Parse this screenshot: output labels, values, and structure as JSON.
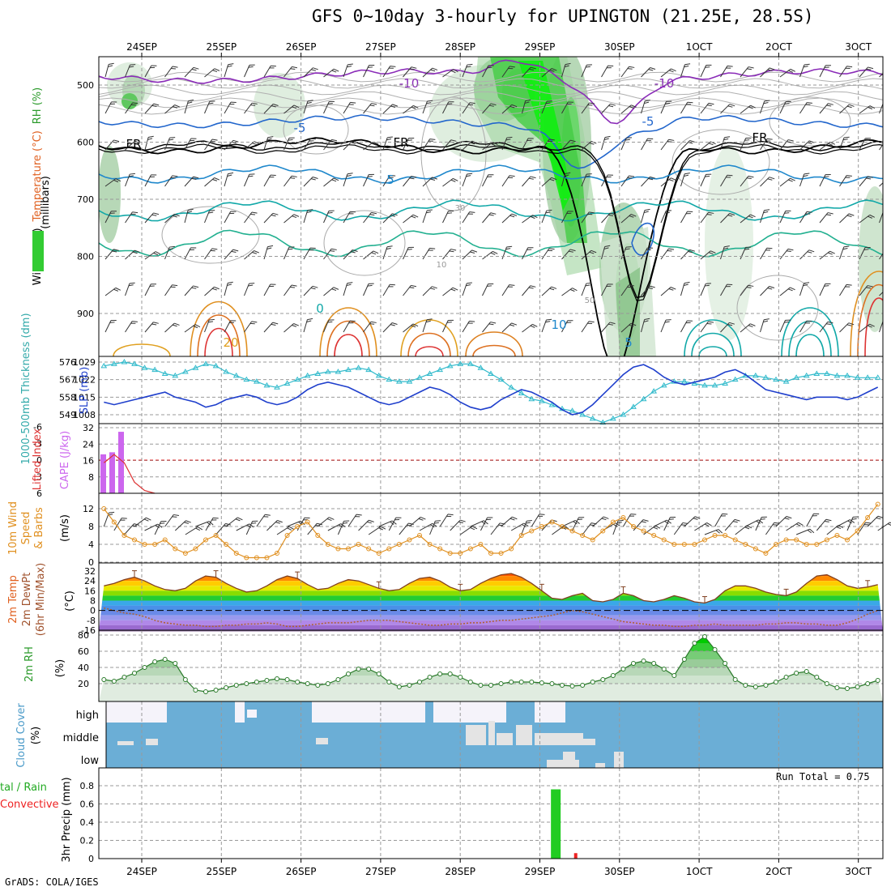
{
  "header": {
    "title": "GFS 0~10day 3-hourly for UPINGTON (21.25E, 28.5S)",
    "credit": "GrADS: COLA/IGES",
    "run_total": "Run Total = 0.75"
  },
  "colors": {
    "rh_green": "#33cc33",
    "wind_barb": "#000000",
    "temp_warm": "#e07020",
    "temp_cold": "#2255cc",
    "freezing": "#000000",
    "thickness": "#33bbcc",
    "slp": "#1f3fcc",
    "cape": "#cc66ee",
    "lifted": "#dd3333",
    "wind_speed": "#e09020",
    "dewpoint": "#a0522d",
    "rh2m": "#33aa33",
    "cloud": "#6baed6",
    "precip_total": "#22cc22",
    "precip_conv": "#ee2222"
  },
  "chart_data": [
    {
      "id": "upper_air",
      "type": "heatmap",
      "top_dates": [
        "24SEP",
        "25SEP",
        "26SEP",
        "27SEP",
        "28SEP",
        "29SEP",
        "30SEP",
        "1OCT",
        "2OCT",
        "3OCT"
      ],
      "y_ticks": [
        "500",
        "600",
        "700",
        "800",
        "900"
      ],
      "y_label": "(millibars)",
      "legend_labels": [
        "Wind (m/s)",
        "Temperature (°C)",
        "RH (%)"
      ],
      "contour_labels": [
        "-10",
        "-10",
        "-5",
        "-5",
        "FR",
        "FR",
        "FR",
        "5",
        "10",
        "20",
        "5",
        "0",
        "10",
        "30",
        "50"
      ]
    },
    {
      "id": "thickness_slp",
      "type": "line",
      "y_ticks_left": [
        "576",
        "567",
        "558",
        "549"
      ],
      "y_ticks_right": [
        "1029",
        "1022",
        "1015",
        "1008"
      ],
      "left_label": "1000-500mb Thickness (dm)",
      "right_label": "SLP (mb)",
      "series": [
        {
          "name": "Thickness",
          "values": [
            574,
            575,
            576,
            575,
            573,
            572,
            570,
            569,
            571,
            573,
            575,
            574,
            571,
            569,
            567,
            566,
            564,
            563,
            565,
            567,
            569,
            570,
            571,
            571,
            572,
            573,
            572,
            569,
            567,
            566,
            566,
            568,
            570,
            572,
            574,
            575,
            575,
            573,
            570,
            567,
            563,
            560,
            557,
            556,
            554,
            552,
            551,
            549,
            547,
            545,
            547,
            549,
            553,
            557,
            561,
            564,
            566,
            566,
            565,
            564,
            564,
            565,
            567,
            569,
            569,
            568,
            567,
            566,
            568,
            569,
            570,
            570,
            569,
            569,
            568,
            568,
            568
          ]
        },
        {
          "name": "SLP",
          "values": [
            1013,
            1012,
            1013,
            1014,
            1015,
            1016,
            1017,
            1015,
            1014,
            1013,
            1011,
            1012,
            1014,
            1015,
            1016,
            1015,
            1013,
            1012,
            1013,
            1015,
            1018,
            1020,
            1021,
            1020,
            1019,
            1017,
            1015,
            1013,
            1012,
            1013,
            1015,
            1017,
            1019,
            1018,
            1016,
            1013,
            1011,
            1010,
            1011,
            1014,
            1016,
            1018,
            1017,
            1015,
            1013,
            1010,
            1008,
            1009,
            1012,
            1016,
            1020,
            1024,
            1027,
            1028,
            1026,
            1023,
            1021,
            1020,
            1021,
            1022,
            1023,
            1025,
            1026,
            1024,
            1021,
            1018,
            1017,
            1016,
            1015,
            1014,
            1015,
            1015,
            1015,
            1014,
            1015,
            1017,
            1019
          ]
        }
      ]
    },
    {
      "id": "cape_li",
      "type": "bar",
      "y_ticks_left": [
        "-6",
        "-3",
        "0",
        "3",
        "6"
      ],
      "y_ticks_right": [
        "32",
        "24",
        "16",
        "8"
      ],
      "left_label": "Lifted Index",
      "right_label": "CAPE (J/kg)",
      "cape_values": [
        19,
        20,
        30
      ],
      "li_values": [
        0.5,
        -1,
        0.5,
        4,
        5.5,
        6
      ]
    },
    {
      "id": "wind10m",
      "type": "line",
      "y_ticks": [
        "12",
        "8",
        "4",
        "0"
      ],
      "label_lines": [
        "10m Wind",
        "Speed",
        "& Barbs"
      ],
      "unit": "(m/s)",
      "values": [
        12,
        9,
        6,
        5,
        4,
        4,
        5,
        3,
        2,
        3,
        5,
        6,
        4,
        2,
        1,
        1,
        1,
        2,
        6,
        8,
        9,
        6,
        4,
        3,
        3,
        4,
        3,
        2,
        3,
        4,
        5,
        6,
        4,
        3,
        2,
        2,
        3,
        4,
        2,
        2,
        3,
        6,
        7,
        8,
        9,
        8,
        7,
        6,
        5,
        7,
        9,
        10,
        8,
        7,
        6,
        5,
        4,
        4,
        4,
        5,
        6,
        6,
        5,
        4,
        3,
        2,
        4,
        5,
        5,
        4,
        4,
        5,
        6,
        5,
        7,
        10,
        13
      ]
    },
    {
      "id": "temp2m",
      "type": "area",
      "y_ticks": [
        "32",
        "24",
        "16",
        "8",
        "0",
        "-8",
        "-16"
      ],
      "label_lines": [
        "2m Temp",
        "2m DewPt",
        "(6hr Min/Max)"
      ],
      "unit": "(°C)",
      "temp_values": [
        20,
        22,
        25,
        27,
        24,
        20,
        17,
        16,
        18,
        24,
        28,
        27,
        22,
        18,
        15,
        16,
        20,
        25,
        28,
        26,
        21,
        17,
        18,
        22,
        25,
        24,
        21,
        18,
        16,
        17,
        22,
        26,
        27,
        24,
        19,
        16,
        17,
        22,
        26,
        29,
        30,
        27,
        22,
        16,
        10,
        9,
        12,
        14,
        8,
        7,
        9,
        14,
        12,
        8,
        7,
        9,
        12,
        10,
        7,
        6,
        9,
        16,
        20,
        20,
        18,
        15,
        13,
        12,
        15,
        22,
        28,
        29,
        25,
        20,
        18,
        19,
        21
      ],
      "dewpt_values": [
        2,
        0,
        -2,
        -3,
        -5,
        -8,
        -10,
        -11,
        -12,
        -12,
        -13,
        -13,
        -12,
        -12,
        -11,
        -11,
        -10,
        -11,
        -13,
        -13,
        -12,
        -11,
        -10,
        -10,
        -10,
        -9,
        -8,
        -8,
        -8,
        -9,
        -10,
        -11,
        -12,
        -12,
        -11,
        -11,
        -10,
        -10,
        -9,
        -8,
        -8,
        -7,
        -6,
        -5,
        -4,
        -2,
        0,
        -1,
        -3,
        -5,
        -7,
        -9,
        -10,
        -11,
        -12,
        -12,
        -13,
        -13,
        -12,
        -12,
        -11,
        -12,
        -12,
        -12,
        -12,
        -11,
        -11,
        -10,
        -10,
        -11,
        -11,
        -12,
        -12,
        -10,
        -7,
        -3,
        0
      ]
    },
    {
      "id": "rh2m",
      "type": "area",
      "y_ticks": [
        "80",
        "60",
        "40",
        "20"
      ],
      "label": "2m RH",
      "unit": "(%)",
      "values": [
        25,
        23,
        28,
        33,
        40,
        47,
        50,
        45,
        25,
        12,
        10,
        12,
        15,
        18,
        20,
        22,
        24,
        26,
        25,
        22,
        20,
        18,
        20,
        25,
        32,
        38,
        38,
        32,
        22,
        16,
        18,
        22,
        28,
        32,
        32,
        28,
        22,
        18,
        18,
        20,
        22,
        22,
        22,
        21,
        20,
        18,
        17,
        18,
        22,
        25,
        30,
        38,
        45,
        48,
        45,
        38,
        30,
        50,
        70,
        78,
        62,
        45,
        25,
        18,
        16,
        18,
        22,
        28,
        33,
        35,
        28,
        20,
        15,
        14,
        16,
        20,
        24
      ]
    },
    {
      "id": "cloud",
      "type": "heatmap",
      "rows": [
        "high",
        "middle",
        "low"
      ],
      "label": "Cloud Cover",
      "unit": "(%)"
    },
    {
      "id": "precip",
      "type": "bar",
      "y_ticks": [
        "0.8",
        "0.6",
        "0.4",
        "0.2",
        "0"
      ],
      "label": "3hr Precip (mm)",
      "legend_lines": [
        "tal / Rain",
        "Convective"
      ],
      "bottom_dates": [
        "24SEP",
        "25SEP",
        "26SEP",
        "27SEP",
        "28SEP",
        "29SEP",
        "30SEP",
        "1OCT",
        "2OCT",
        "3OCT"
      ],
      "total_bars": [
        {
          "date_index": 5.2,
          "value": 0.76
        }
      ],
      "conv_bars": [
        {
          "date_index": 5.45,
          "value": 0.06
        }
      ]
    }
  ]
}
